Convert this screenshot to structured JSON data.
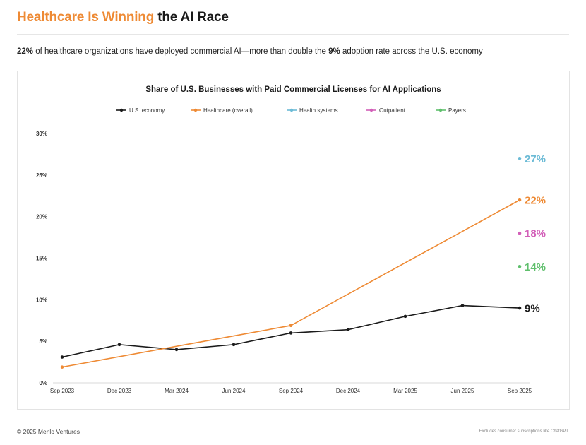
{
  "header": {
    "title_accent": "Healthcare Is Winning",
    "title_rest": "the AI Race",
    "subtitle_bold_1": "22%",
    "subtitle_text_1": " of healthcare organizations have deployed commercial AI—more than double the ",
    "subtitle_bold_2": "9%",
    "subtitle_text_2": " adoption rate across the U.S. economy"
  },
  "footer": {
    "copyright": "© 2025 Menlo Ventures",
    "note": "Excludes consumer subscriptions like ChatGPT."
  },
  "colors": {
    "accent": "#ee8a34",
    "economy": "#1a1a1a",
    "healthcare": "#ee8a34",
    "health_systems": "#6cbbd6",
    "outpatient": "#d25fb8",
    "payers": "#5fbf6c"
  },
  "chart_data": {
    "type": "line",
    "title": "Share of U.S. Businesses with Paid Commercial Licenses for AI Applications",
    "xlabel": "",
    "ylabel": "",
    "ylim": [
      0,
      30
    ],
    "yticks": [
      0,
      5,
      10,
      15,
      20,
      25,
      30
    ],
    "ytick_labels": [
      "0%",
      "5%",
      "10%",
      "15%",
      "20%",
      "25%",
      "30%"
    ],
    "categories": [
      "Sep 2023",
      "Dec 2023",
      "Mar 2024",
      "Jun 2024",
      "Sep 2024",
      "Dec 2024",
      "Mar 2025",
      "Jun 2025",
      "Sep 2025"
    ],
    "legend": [
      "U.S. economy",
      "Healthcare (overall)",
      "Health systems",
      "Outpatient",
      "Payers"
    ],
    "series": [
      {
        "name": "U.S. economy",
        "color_key": "economy",
        "points": [
          [
            0,
            3.1
          ],
          [
            1,
            4.6
          ],
          [
            2,
            4.0
          ],
          [
            3,
            4.6
          ],
          [
            4,
            6.0
          ],
          [
            5,
            6.4
          ],
          [
            6,
            8.0
          ],
          [
            7,
            9.3
          ],
          [
            8,
            9.0
          ]
        ],
        "end_label": "9%"
      },
      {
        "name": "Healthcare (overall)",
        "color_key": "healthcare",
        "points": [
          [
            0,
            1.9
          ],
          [
            4,
            6.9
          ],
          [
            8,
            22.0
          ]
        ],
        "end_label": "22%"
      },
      {
        "name": "Health systems",
        "color_key": "health_systems",
        "points": [
          [
            8,
            27.0
          ]
        ],
        "end_label": "27%"
      },
      {
        "name": "Outpatient",
        "color_key": "outpatient",
        "points": [
          [
            8,
            18.0
          ]
        ],
        "end_label": "18%"
      },
      {
        "name": "Payers",
        "color_key": "payers",
        "points": [
          [
            8,
            14.0
          ]
        ],
        "end_label": "14%"
      }
    ]
  }
}
